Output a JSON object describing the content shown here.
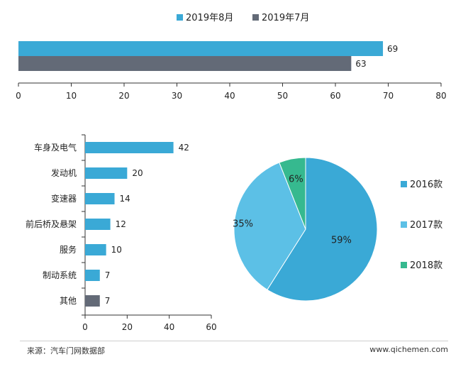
{
  "colors": {
    "blue": "#3aa9d6",
    "gray": "#636a77",
    "lightblue": "#5cc0e6",
    "green": "#36b98f",
    "axis": "#333333"
  },
  "chart_data": [
    {
      "type": "bar",
      "orientation": "horizontal",
      "legend_position": "top",
      "series": [
        {
          "name": "2019年8月",
          "value": 69,
          "color": "#3aa9d6"
        },
        {
          "name": "2019年7月",
          "value": 63,
          "color": "#636a77"
        }
      ],
      "xlim": [
        0,
        80
      ],
      "xticks": [
        0,
        10,
        20,
        30,
        40,
        50,
        60,
        70,
        80
      ],
      "grid": false
    },
    {
      "type": "bar",
      "orientation": "horizontal",
      "categories": [
        "车身及电气",
        "发动机",
        "变速器",
        "前后桥及悬架",
        "服务",
        "制动系统",
        "其他"
      ],
      "values": [
        42,
        20,
        14,
        12,
        10,
        7,
        7
      ],
      "bar_colors": [
        "#3aa9d6",
        "#3aa9d6",
        "#3aa9d6",
        "#3aa9d6",
        "#3aa9d6",
        "#3aa9d6",
        "#636a77"
      ],
      "xlim": [
        0,
        60
      ],
      "xticks": [
        0,
        20,
        40,
        60
      ],
      "grid": false
    },
    {
      "type": "pie",
      "legend_position": "right",
      "slices": [
        {
          "label": "2016款",
          "value": 59,
          "text": "59%",
          "color": "#3aa9d6"
        },
        {
          "label": "2017款",
          "value": 35,
          "text": "35%",
          "color": "#5cc0e6"
        },
        {
          "label": "2018款",
          "value": 6,
          "text": "6%",
          "color": "#36b98f"
        }
      ]
    }
  ],
  "footer": {
    "source": "来源：汽车门网数据部",
    "website": "www.qichemen.com"
  }
}
